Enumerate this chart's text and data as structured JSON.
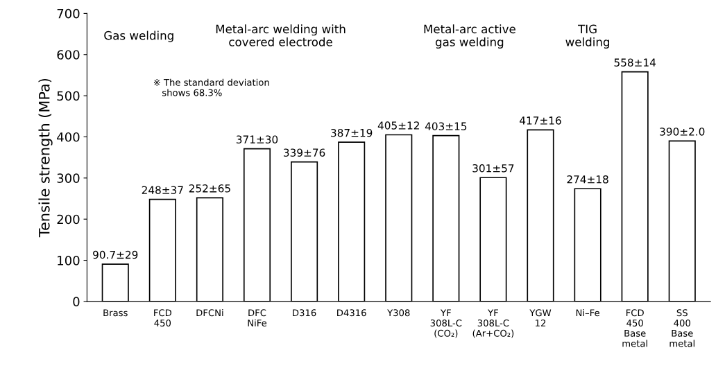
{
  "chart_data": {
    "type": "bar",
    "ylabel": "Tensile strength (MPa)",
    "categories": [
      "Brass",
      "FCD\n450",
      "DFCNi",
      "DFC\nNiFe",
      "D316",
      "D4316",
      "Y308",
      "YF\n308L-C\n(CO₂)",
      "YF\n308L-C\n(Ar+CO₂)",
      "YGW\n12",
      "Ni–Fe",
      "FCD\n450\nBase\nmetal",
      "SS\n400\nBase\nmetal"
    ],
    "values": [
      90.7,
      248,
      252,
      371,
      339,
      387,
      405,
      403,
      301,
      417,
      274,
      558,
      390
    ],
    "value_labels": [
      "90.7±29",
      "248±37",
      "252±65",
      "371±30",
      "339±76",
      "387±19",
      "405±12",
      "403±15",
      "301±57",
      "417±16",
      "274±18",
      "558±14",
      "390±2.0"
    ],
    "color": "#ffffff",
    "ylim": [
      0,
      700
    ],
    "yticks": [
      0,
      100,
      200,
      300,
      400,
      500,
      600,
      700
    ],
    "grid": false,
    "annotations": [
      "Gas welding",
      "Metal-arc welding with\ncovered electrode",
      "Metal-arc active\ngas welding",
      "TIG\nwelding",
      "※ The standard deviation\n   shows 68.3%"
    ]
  }
}
